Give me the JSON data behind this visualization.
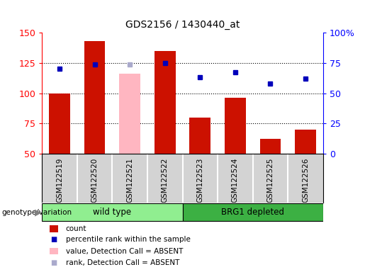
{
  "title": "GDS2156 / 1430440_at",
  "samples": [
    "GSM122519",
    "GSM122520",
    "GSM122521",
    "GSM122522",
    "GSM122523",
    "GSM122524",
    "GSM122525",
    "GSM122526"
  ],
  "count_values": [
    100,
    143,
    null,
    135,
    80,
    96,
    62,
    70
  ],
  "count_absent": [
    null,
    null,
    116,
    null,
    null,
    null,
    null,
    null
  ],
  "rank_values_left": [
    120,
    124,
    null,
    125,
    113,
    117,
    108,
    112
  ],
  "rank_absent_left": [
    null,
    null,
    124,
    null,
    null,
    null,
    null,
    null
  ],
  "rank_values_right": [
    70,
    74,
    null,
    75,
    63,
    67,
    58,
    62
  ],
  "rank_absent_right": [
    null,
    null,
    74,
    null,
    null,
    null,
    null,
    null
  ],
  "ylim_left": [
    50,
    150
  ],
  "ylim_right": [
    0,
    100
  ],
  "yticks_left": [
    50,
    75,
    100,
    125,
    150
  ],
  "yticks_right": [
    0,
    25,
    50,
    75,
    100
  ],
  "ytick_labels_right": [
    "0",
    "25",
    "50",
    "75",
    "100%"
  ],
  "groups": [
    {
      "label": "wild type",
      "start": 0,
      "end": 3,
      "color": "#90EE90"
    },
    {
      "label": "BRG1 depleted",
      "start": 4,
      "end": 7,
      "color": "#3CB043"
    }
  ],
  "group_label": "genotype/variation",
  "bar_color": "#CC1100",
  "bar_absent_color": "#FFB6C1",
  "rank_color": "#0000BB",
  "rank_absent_color": "#AAAACC",
  "bg_color": "#D3D3D3",
  "plot_bg": "#FFFFFF",
  "legend_items": [
    {
      "label": "count",
      "color": "#CC1100",
      "type": "rect"
    },
    {
      "label": "percentile rank within the sample",
      "color": "#0000BB",
      "type": "square"
    },
    {
      "label": "value, Detection Call = ABSENT",
      "color": "#FFB6C1",
      "type": "rect"
    },
    {
      "label": "rank, Detection Call = ABSENT",
      "color": "#AAAACC",
      "type": "square"
    }
  ]
}
